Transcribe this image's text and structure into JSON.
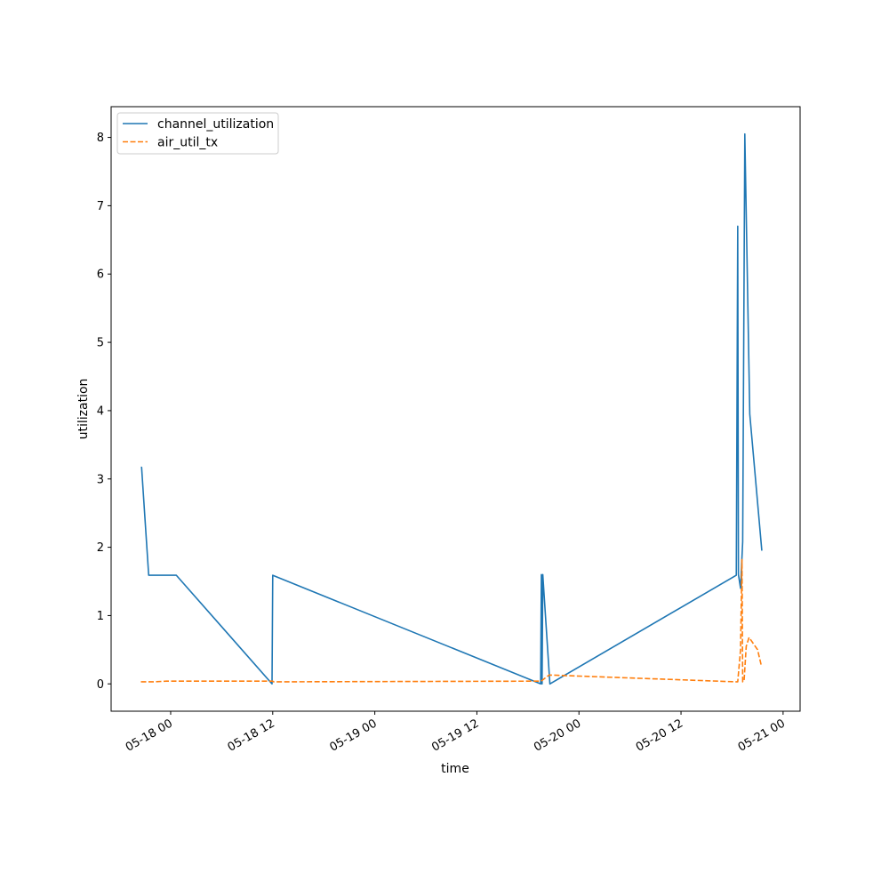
{
  "chart_data": {
    "type": "line",
    "title": "",
    "xlabel": "time",
    "ylabel": "utilization",
    "x_ticks": [
      "05-18 00",
      "05-18 12",
      "05-19 00",
      "05-19 12",
      "05-20 00",
      "05-20 12",
      "05-21 00"
    ],
    "y_ticks": [
      "0",
      "1",
      "2",
      "3",
      "4",
      "5",
      "6",
      "7",
      "8"
    ],
    "xlim": [
      "2024-05-17 17:00",
      "2024-05-21 02:00"
    ],
    "ylim": [
      -0.4,
      8.45
    ],
    "grid": false,
    "legend_position": "top-left",
    "series": [
      {
        "name": "channel_utilization",
        "color": "#1f77b4",
        "style": "solid",
        "points": [
          [
            "2024-05-17 20:30",
            3.17
          ],
          [
            "2024-05-17 20:35",
            3.17
          ],
          [
            "2024-05-17 21:25",
            1.59
          ],
          [
            "2024-05-18 00:40",
            1.59
          ],
          [
            "2024-05-18 11:55",
            0.0
          ],
          [
            "2024-05-18 12:00",
            1.59
          ],
          [
            "2024-05-19 19:30",
            0.0
          ],
          [
            "2024-05-19 19:35",
            1.6
          ],
          [
            "2024-05-19 19:40",
            0.0
          ],
          [
            "2024-05-19 19:45",
            1.6
          ],
          [
            "2024-05-19 20:35",
            0.0
          ],
          [
            "2024-05-20 18:30",
            1.59
          ],
          [
            "2024-05-20 18:40",
            6.7
          ],
          [
            "2024-05-20 18:45",
            1.6
          ],
          [
            "2024-05-20 19:00",
            1.4
          ],
          [
            "2024-05-20 19:15",
            2.08
          ],
          [
            "2024-05-20 19:30",
            8.05
          ],
          [
            "2024-05-20 20:05",
            3.95
          ],
          [
            "2024-05-20 21:30",
            1.95
          ]
        ]
      },
      {
        "name": "air_util_tx",
        "color": "#ff7f0e",
        "style": "dashed",
        "points": [
          [
            "2024-05-17 20:30",
            0.03
          ],
          [
            "2024-05-17 22:00",
            0.03
          ],
          [
            "2024-05-17 23:30",
            0.04
          ],
          [
            "2024-05-18 12:00",
            0.04
          ],
          [
            "2024-05-18 12:05",
            0.03
          ],
          [
            "2024-05-19 19:30",
            0.04
          ],
          [
            "2024-05-19 19:40",
            0.05
          ],
          [
            "2024-05-19 20:30",
            0.13
          ],
          [
            "2024-05-20 18:30",
            0.03
          ],
          [
            "2024-05-20 18:40",
            0.03
          ],
          [
            "2024-05-20 19:00",
            0.5
          ],
          [
            "2024-05-20 19:10",
            1.82
          ],
          [
            "2024-05-20 19:15",
            0.03
          ],
          [
            "2024-05-20 19:25",
            0.05
          ],
          [
            "2024-05-20 19:40",
            0.55
          ],
          [
            "2024-05-20 20:00",
            0.68
          ],
          [
            "2024-05-20 21:00",
            0.5
          ],
          [
            "2024-05-20 21:25",
            0.28
          ]
        ]
      }
    ]
  }
}
